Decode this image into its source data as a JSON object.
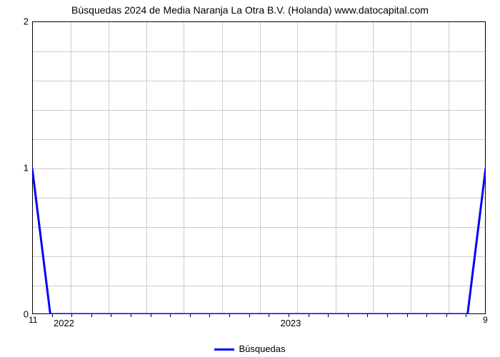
{
  "chart": {
    "type": "line",
    "title": "Búsquedas 2024 de Media Naranja La Otra B.V. (Holanda) www.datocapital.com",
    "title_fontsize": 14,
    "background_color": "#ffffff",
    "grid_color": "#cccccc",
    "border_color": "#000000",
    "line_color": "#0000ff",
    "line_width": 3,
    "ylim": [
      0,
      2
    ],
    "ytick_values": [
      0,
      1,
      2
    ],
    "y_minor_ticks": [
      0.2,
      0.4,
      0.6,
      0.8,
      1.2,
      1.4,
      1.6,
      1.8
    ],
    "xlabels_major": [
      "2022",
      "2023"
    ],
    "xlabels_major_positions": [
      0.07,
      0.57
    ],
    "x_minor_tick_count": 22,
    "x_left_end_label": "11",
    "x_right_end_label": "9",
    "legend_label": "Búsquedas",
    "data_points": [
      {
        "x": 0.0,
        "y": 1.0
      },
      {
        "x": 0.04,
        "y": 0.0
      },
      {
        "x": 0.96,
        "y": 0.0
      },
      {
        "x": 1.0,
        "y": 1.0
      }
    ],
    "vgrid_positions": [
      0.083,
      0.167,
      0.25,
      0.333,
      0.417,
      0.5,
      0.583,
      0.667,
      0.75,
      0.833,
      0.917
    ]
  }
}
